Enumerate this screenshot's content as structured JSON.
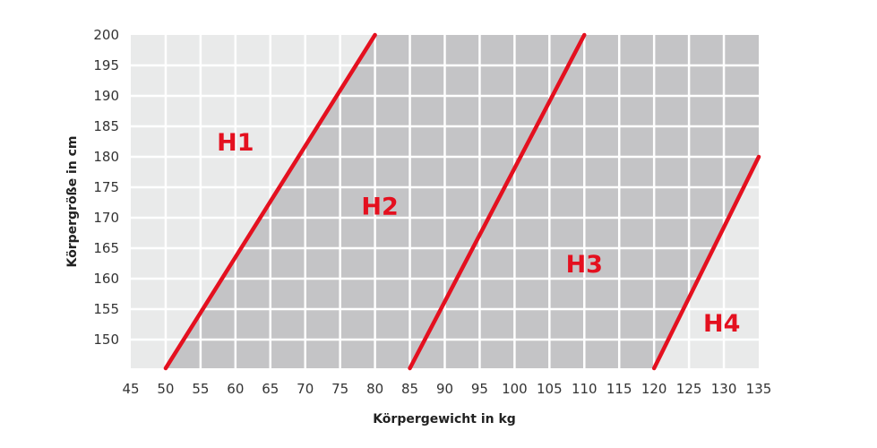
{
  "chart_data": {
    "type": "line",
    "title": "",
    "xlabel": "Körpergewicht in kg",
    "ylabel": "Körpergröße in cm",
    "xlim": [
      45,
      135
    ],
    "ylim": [
      145.3,
      200
    ],
    "xticks": [
      "45",
      "50",
      "55",
      "60",
      "65",
      "70",
      "75",
      "80",
      "85",
      "90",
      "95",
      "100",
      "105",
      "110",
      "115",
      "120",
      "125",
      "130",
      "135"
    ],
    "yticks": [
      "150",
      "155",
      "160",
      "165",
      "170",
      "175",
      "180",
      "185",
      "190",
      "195",
      "200"
    ],
    "grid": true,
    "series": [
      {
        "points": [
          [
            50,
            145.3
          ],
          [
            80,
            200
          ]
        ]
      },
      {
        "points": [
          [
            85,
            145.3
          ],
          [
            110,
            200
          ]
        ]
      },
      {
        "points": [
          [
            120,
            145.3
          ],
          [
            135,
            180
          ]
        ]
      }
    ],
    "zones": [
      {
        "label": "H1",
        "x": 60,
        "y": 182.5
      },
      {
        "label": "H2",
        "x": 80.7,
        "y": 172
      },
      {
        "label": "H3",
        "x": 110,
        "y": 162.5
      },
      {
        "label": "H4",
        "x": 129.7,
        "y": 152.8
      }
    ],
    "colors": {
      "light": "#e9eaea",
      "dark": "#c4c4c6",
      "line": "#e4101f",
      "grid": "#ffffff"
    }
  }
}
